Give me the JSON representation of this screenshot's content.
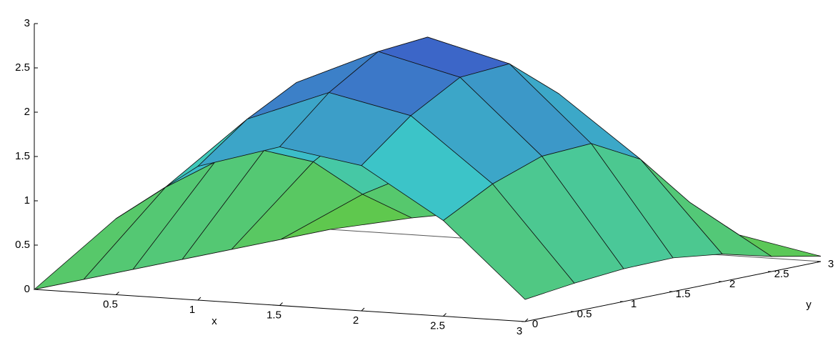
{
  "chart_data": {
    "type": "surface",
    "x": [
      0,
      0.5,
      1,
      1.5,
      2,
      2.5,
      3
    ],
    "y": [
      0,
      0.5,
      1,
      1.5,
      2,
      2.5,
      3
    ],
    "z": [
      [
        0,
        0,
        0,
        0,
        0,
        0,
        0
      ],
      [
        0.86,
        1.1,
        1.27,
        1.29,
        1.05,
        0.57,
        0.19
      ],
      [
        1.51,
        1.93,
        2.23,
        2.27,
        1.85,
        1.01,
        0.34
      ],
      [
        1.79,
        2.29,
        2.64,
        2.69,
        2.19,
        1.2,
        0.4
      ],
      [
        1.64,
        2.09,
        2.41,
        2.45,
        2.0,
        1.09,
        0.36
      ],
      [
        1.08,
        1.38,
        1.58,
        1.61,
        1.32,
        0.72,
        0.24
      ],
      [
        0.25,
        0.32,
        0.37,
        0.38,
        0.31,
        0.17,
        0.06
      ]
    ],
    "xlabel": "x",
    "ylabel": "y",
    "xlim": [
      0,
      3
    ],
    "ylim": [
      0,
      3
    ],
    "zlim": [
      0,
      3
    ],
    "xticks": [
      0.5,
      1,
      1.5,
      2,
      2.5,
      3
    ],
    "yticks": [
      0,
      0.5,
      1,
      1.5,
      2,
      2.5,
      3
    ],
    "zticks": [
      0,
      0.5,
      1,
      1.5,
      2,
      2.5,
      3
    ]
  }
}
